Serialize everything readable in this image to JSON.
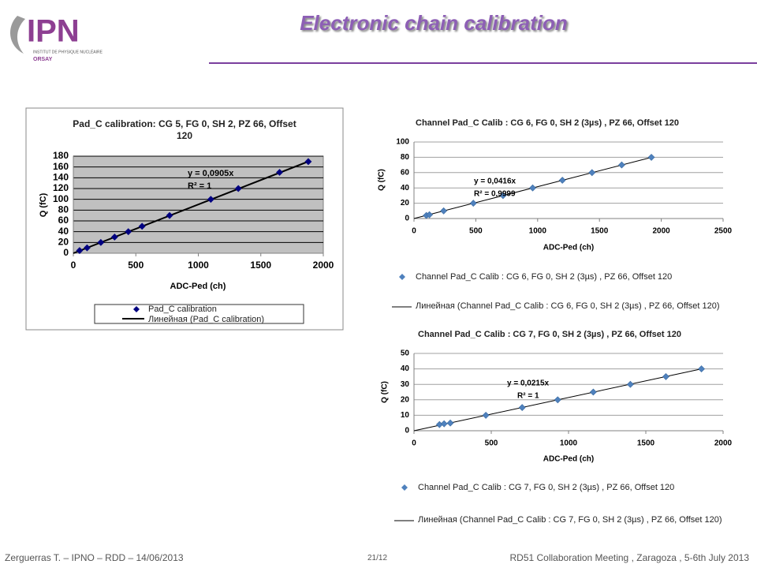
{
  "header": {
    "logo": "IPN",
    "logo_line1": "INSTITUT DE PHYSIQUE NUCLÉAIRE",
    "logo_line2": "ORSAY",
    "title": "Electronic chain calibration"
  },
  "footer": {
    "left": "Zerguerras T. – IPNO – RDD – 14/06/2013",
    "center": "21/12",
    "right": "RD51 Collaboration Meeting , Zaragoza , 5-6th July 2013"
  },
  "chart_data": [
    {
      "type": "scatter",
      "title": "Pad_C calibration: CG 5, FG 0, SH 2, PZ 66, Offset 120",
      "x_label": "ADC-Ped (ch)",
      "y_label": "Q (fC)",
      "x": [
        50,
        110,
        220,
        330,
        440,
        550,
        770,
        1100,
        1320,
        1650,
        1880
      ],
      "series": [
        {
          "name": "Pad_C calibration",
          "color": "#000080",
          "values": [
            5,
            10,
            20,
            30,
            40,
            50,
            70,
            100,
            120,
            150,
            170
          ]
        }
      ],
      "trendline": {
        "name": "Линейная (Pad_C calibration)",
        "color": "#000000",
        "slope": 0.0905,
        "equation": "y = 0,0905x",
        "r2": "R² = 1"
      },
      "xlim": [
        0,
        2000
      ],
      "xticks": [
        0,
        500,
        1000,
        1500,
        2000
      ],
      "ylim": [
        0,
        180
      ],
      "yticks": [
        0,
        20,
        40,
        60,
        80,
        100,
        120,
        140,
        160,
        180
      ],
      "grid": true,
      "plot_background": "#c0c0c0",
      "grid_color": "#000000"
    },
    {
      "type": "scatter",
      "title": "Channel Pad_C Calib : CG 6, FG 0, SH 2 (3µs) , PZ 66, Offset 120",
      "x_label": "ADC-Ped (ch)",
      "y_label": "Q (fC)",
      "x": [
        100,
        125,
        240,
        480,
        720,
        960,
        1200,
        1440,
        1680,
        1920
      ],
      "series": [
        {
          "name": "Channel Pad_C Calib : CG 6, FG 0, SH 2 (3µs) , PZ 66, Offset 120",
          "color": "#4f81bd",
          "values": [
            4,
            5,
            10,
            20,
            30,
            40,
            50,
            60,
            70,
            80
          ]
        }
      ],
      "trendline": {
        "name": "Линейная (Channel Pad_C Calib : CG 6, FG 0, SH 2 (3µs) , PZ 66, Offset 120)",
        "color": "#000000",
        "slope": 0.0416,
        "equation": "y = 0,0416x",
        "r2": "R² = 0,9999"
      },
      "xlim": [
        0,
        2500
      ],
      "xticks": [
        0,
        500,
        1000,
        1500,
        2000,
        2500
      ],
      "ylim": [
        0,
        100
      ],
      "yticks": [
        0,
        20,
        40,
        60,
        80,
        100
      ],
      "grid": true,
      "plot_background": "#ffffff",
      "grid_color": "#a0a0a0"
    },
    {
      "type": "scatter",
      "title": "Channel Pad_C Calib : CG 7, FG 0, SH 2 (3µs) , PZ 66, Offset 120",
      "x_label": "ADC-Ped (ch)",
      "y_label": "Q (fC)",
      "x": [
        165,
        195,
        235,
        465,
        700,
        930,
        1160,
        1400,
        1630,
        1860
      ],
      "series": [
        {
          "name": "Channel Pad_C Calib : CG 7, FG 0, SH 2 (3µs) , PZ 66, Offset 120",
          "color": "#4f81bd",
          "values": [
            4,
            4.5,
            5,
            10,
            15,
            20,
            25,
            30,
            35,
            40
          ]
        }
      ],
      "trendline": {
        "name": "Линейная (Channel Pad_C Calib : CG 7, FG 0, SH 2 (3µs) , PZ 66, Offset 120)",
        "color": "#000000",
        "slope": 0.0215,
        "equation": "y = 0,0215x",
        "r2": "R² = 1"
      },
      "xlim": [
        0,
        2000
      ],
      "xticks": [
        0,
        500,
        1000,
        1500,
        2000
      ],
      "ylim": [
        0,
        50
      ],
      "yticks": [
        0,
        10,
        20,
        30,
        40,
        50
      ],
      "grid": true,
      "plot_background": "#ffffff",
      "grid_color": "#a0a0a0"
    }
  ]
}
